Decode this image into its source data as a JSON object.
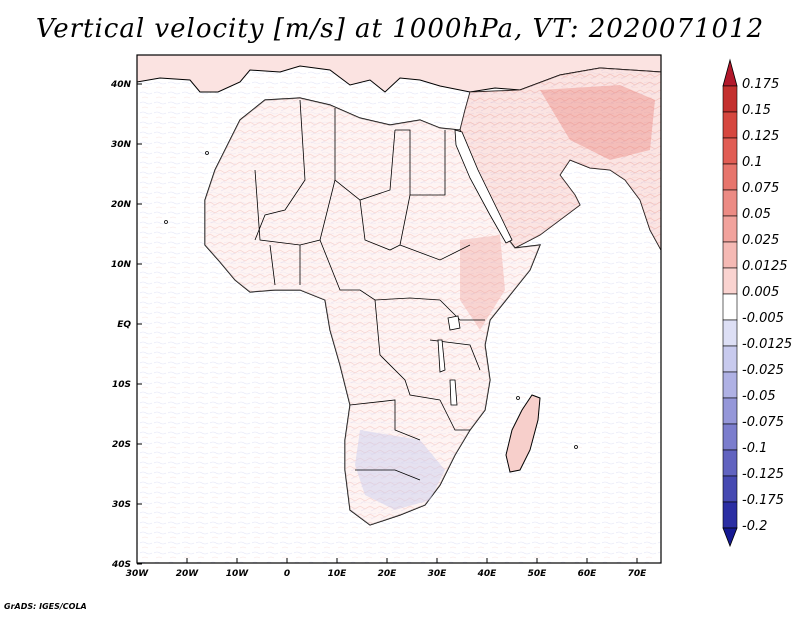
{
  "title": "Vertical velocity [m/s] at 1000hPa, VT: 2020071012",
  "footer": "GrADS: IGES/COLA",
  "map": {
    "region": "Africa",
    "lon_labels": [
      "30W",
      "20W",
      "10W",
      "0",
      "10E",
      "20E",
      "30E",
      "40E",
      "50E",
      "60E",
      "70E"
    ],
    "lat_labels": [
      "40N",
      "30N",
      "20N",
      "10N",
      "EQ",
      "10S",
      "20S",
      "30S",
      "40S"
    ],
    "frame_color": "#000000",
    "coastline_color": "#000000"
  },
  "colorbar": {
    "levels": [
      "0.175",
      "0.15",
      "0.125",
      "0.1",
      "0.075",
      "0.05",
      "0.025",
      "0.0125",
      "0.005",
      "-0.005",
      "-0.0125",
      "-0.025",
      "-0.05",
      "-0.075",
      "-0.1",
      "-0.125",
      "-0.175",
      "-0.2"
    ],
    "colors": [
      "#b2182b",
      "#c4302e",
      "#d6473f",
      "#e15d54",
      "#e7756c",
      "#ec8b84",
      "#f1a29c",
      "#f5b9b4",
      "#fad3d0",
      "#ffffff",
      "#dddff5",
      "#c8caee",
      "#afb1e4",
      "#9597d9",
      "#7b7dcd",
      "#6163c0",
      "#4649b2",
      "#2b2ea3",
      "#151993"
    ]
  }
}
